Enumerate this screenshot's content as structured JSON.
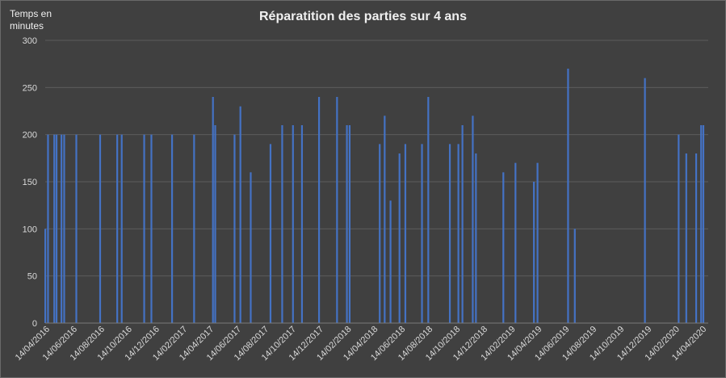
{
  "chart_data": {
    "type": "bar",
    "title": "Réparatition des parties sur 4 ans",
    "ylabel": "Temps en minutes",
    "xlabel": "",
    "ylim": [
      0,
      300
    ],
    "yticks": [
      0,
      50,
      100,
      150,
      200,
      250,
      300
    ],
    "grid": true,
    "legend": "none",
    "xlim": [
      "2016-04-14",
      "2020-04-28"
    ],
    "xticks": [
      "14/04/2016",
      "14/06/2016",
      "14/08/2016",
      "14/10/2016",
      "14/12/2016",
      "14/02/2017",
      "14/04/2017",
      "14/06/2017",
      "14/08/2017",
      "14/10/2017",
      "14/12/2017",
      "14/02/2018",
      "14/04/2018",
      "14/06/2018",
      "14/08/2018",
      "14/10/2018",
      "14/12/2018",
      "14/02/2019",
      "14/04/2019",
      "14/06/2019",
      "14/08/2019",
      "14/10/2019",
      "14/12/2019",
      "14/02/2020",
      "14/04/2020"
    ],
    "series": [
      {
        "color": "#4472C4",
        "points": [
          {
            "x": "2016-04-14",
            "y": 100
          },
          {
            "x": "2016-04-20",
            "y": 200
          },
          {
            "x": "2016-05-04",
            "y": 200
          },
          {
            "x": "2016-05-09",
            "y": 200
          },
          {
            "x": "2016-05-20",
            "y": 200
          },
          {
            "x": "2016-05-26",
            "y": 200
          },
          {
            "x": "2016-06-22",
            "y": 200
          },
          {
            "x": "2016-08-14",
            "y": 200
          },
          {
            "x": "2016-09-21",
            "y": 200
          },
          {
            "x": "2016-10-01",
            "y": 200
          },
          {
            "x": "2016-11-20",
            "y": 200
          },
          {
            "x": "2016-12-06",
            "y": 200
          },
          {
            "x": "2017-01-21",
            "y": 200
          },
          {
            "x": "2017-03-11",
            "y": 200
          },
          {
            "x": "2017-04-22",
            "y": 240
          },
          {
            "x": "2017-04-27",
            "y": 210
          },
          {
            "x": "2017-06-09",
            "y": 200
          },
          {
            "x": "2017-06-22",
            "y": 230
          },
          {
            "x": "2017-07-15",
            "y": 160
          },
          {
            "x": "2017-08-28",
            "y": 190
          },
          {
            "x": "2017-09-23",
            "y": 210
          },
          {
            "x": "2017-10-17",
            "y": 210
          },
          {
            "x": "2017-11-06",
            "y": 210
          },
          {
            "x": "2017-12-14",
            "y": 240
          },
          {
            "x": "2018-01-23",
            "y": 240
          },
          {
            "x": "2018-02-14",
            "y": 210
          },
          {
            "x": "2018-02-20",
            "y": 210
          },
          {
            "x": "2018-04-28",
            "y": 190
          },
          {
            "x": "2018-05-09",
            "y": 220
          },
          {
            "x": "2018-05-22",
            "y": 130
          },
          {
            "x": "2018-06-11",
            "y": 180
          },
          {
            "x": "2018-06-24",
            "y": 190
          },
          {
            "x": "2018-07-31",
            "y": 190
          },
          {
            "x": "2018-08-14",
            "y": 240
          },
          {
            "x": "2018-10-01",
            "y": 190
          },
          {
            "x": "2018-10-20",
            "y": 190
          },
          {
            "x": "2018-10-29",
            "y": 210
          },
          {
            "x": "2018-11-21",
            "y": 220
          },
          {
            "x": "2018-11-28",
            "y": 180
          },
          {
            "x": "2019-01-28",
            "y": 160
          },
          {
            "x": "2019-02-24",
            "y": 170
          },
          {
            "x": "2019-04-06",
            "y": 150
          },
          {
            "x": "2019-04-14",
            "y": 170
          },
          {
            "x": "2019-06-21",
            "y": 270
          },
          {
            "x": "2019-07-06",
            "y": 100
          },
          {
            "x": "2019-12-09",
            "y": 260
          },
          {
            "x": "2020-02-22",
            "y": 200
          },
          {
            "x": "2020-03-10",
            "y": 180
          },
          {
            "x": "2020-04-01",
            "y": 180
          },
          {
            "x": "2020-04-12",
            "y": 210
          },
          {
            "x": "2020-04-17",
            "y": 210
          }
        ]
      }
    ]
  }
}
